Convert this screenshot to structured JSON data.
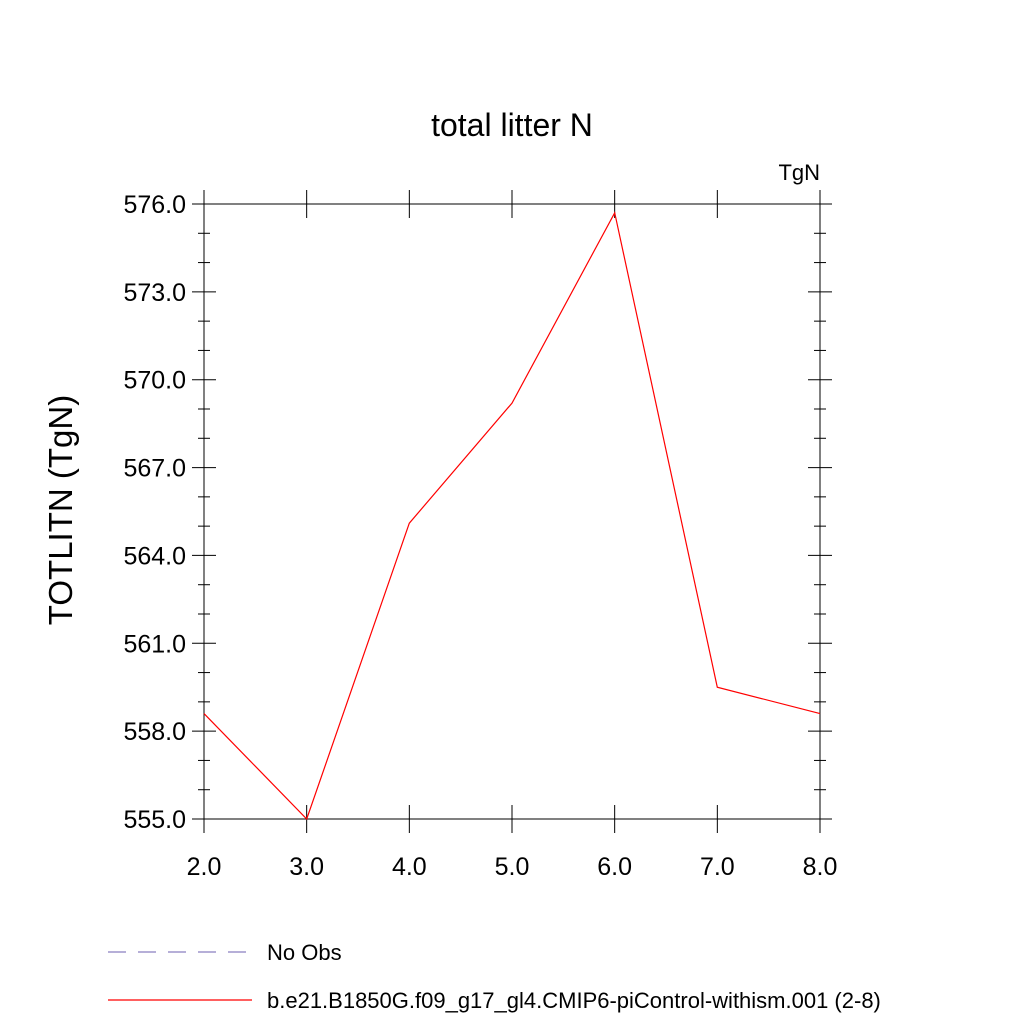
{
  "chart_data": {
    "type": "line",
    "title": "total litter N",
    "units_label": "TgN",
    "ylabel": "TOTLITN  (TgN)",
    "xlabel": "",
    "xlim": [
      2.0,
      8.0
    ],
    "ylim": [
      555.0,
      576.0
    ],
    "x_ticks": [
      2.0,
      3.0,
      4.0,
      5.0,
      6.0,
      7.0,
      8.0
    ],
    "x_tick_labels": [
      "2.0",
      "3.0",
      "4.0",
      "5.0",
      "6.0",
      "7.0",
      "8.0"
    ],
    "y_ticks": [
      555.0,
      558.0,
      561.0,
      564.0,
      567.0,
      570.0,
      573.0,
      576.0
    ],
    "y_tick_labels": [
      "555.0",
      "558.0",
      "561.0",
      "564.0",
      "567.0",
      "570.0",
      "573.0",
      "576.0"
    ],
    "y_minor_step": 1.0,
    "x_minor_step": 1.0,
    "grid": false,
    "legend_position": "bottom",
    "series": [
      {
        "name": "b.e21.B1850G.f09_g17_gl4.CMIP6-piControl-withism.001 (2-8)",
        "color": "#ff0000",
        "style": "solid",
        "x": [
          2.0,
          3.0,
          4.0,
          5.0,
          6.0,
          7.0,
          8.0
        ],
        "values": [
          558.6,
          555.0,
          565.1,
          569.2,
          575.7,
          559.5,
          558.6
        ]
      }
    ],
    "legend": [
      {
        "label": "No Obs",
        "color": "#8a7fc0",
        "style": "dashed"
      },
      {
        "label": "b.e21.B1850G.f09_g17_gl4.CMIP6-piControl-withism.001 (2-8)",
        "color": "#ff0000",
        "style": "solid"
      }
    ]
  }
}
